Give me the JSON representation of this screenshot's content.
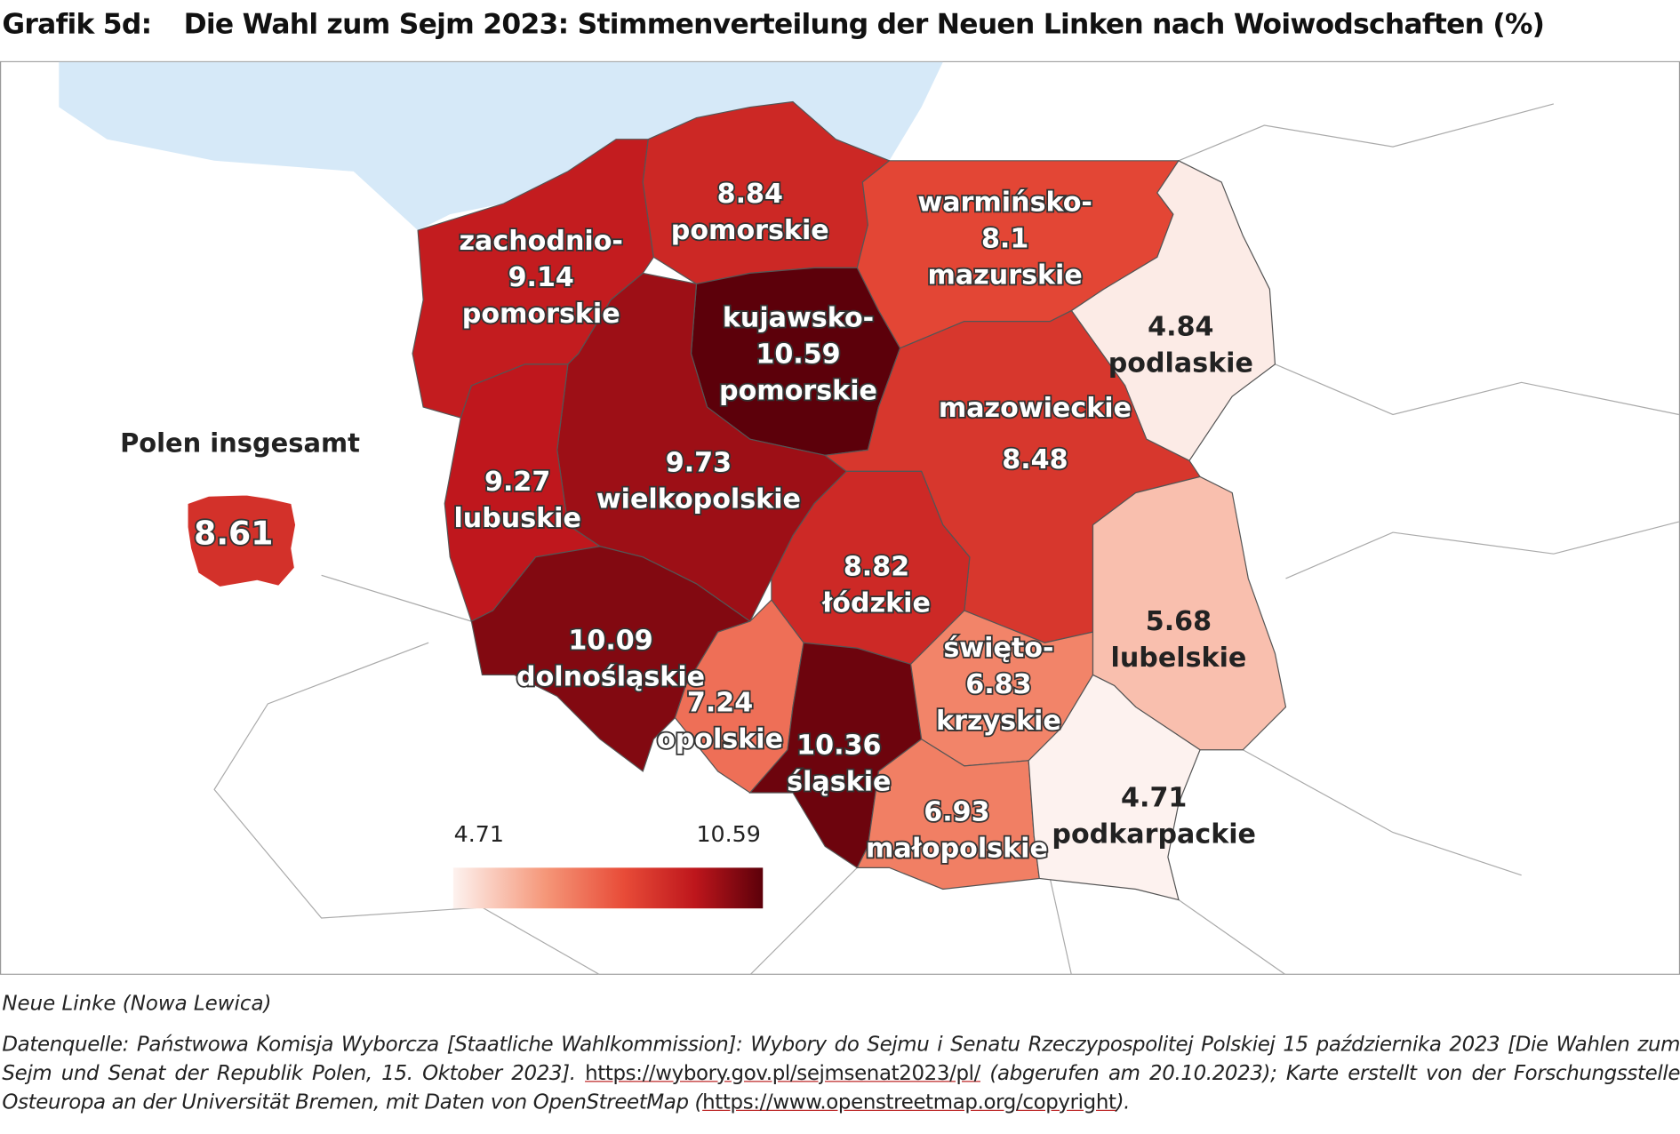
{
  "title_label": "Grafik 5d:",
  "title": "Die Wahl zum Sejm 2023: Stimmenverteilung der Neuen Linken nach Woiwodschaften (%)",
  "overall": {
    "label": "Polen insgesamt",
    "value": 8.61
  },
  "legend": {
    "min": 4.71,
    "max": 10.59
  },
  "regions": [
    {
      "name": [
        "zachodnio-",
        "pomorskie"
      ],
      "value": 9.14
    },
    {
      "name": [
        "pomorskie"
      ],
      "value": 8.84
    },
    {
      "name": [
        "warmińsko-",
        "mazurskie"
      ],
      "value": 8.1
    },
    {
      "name": [
        "podlaskie"
      ],
      "value": 4.84
    },
    {
      "name": [
        "kujawsko-",
        "pomorskie"
      ],
      "value": 10.59
    },
    {
      "name": [
        "wielkopolskie"
      ],
      "value": 9.73
    },
    {
      "name": [
        "lubuskie"
      ],
      "value": 9.27
    },
    {
      "name": [
        "mazowieckie"
      ],
      "value": 8.48
    },
    {
      "name": [
        "łódzkie"
      ],
      "value": 8.82
    },
    {
      "name": [
        "dolnośląskie"
      ],
      "value": 10.09
    },
    {
      "name": [
        "opolskie"
      ],
      "value": 7.24
    },
    {
      "name": [
        "śląskie"
      ],
      "value": 10.36
    },
    {
      "name": [
        "święto-",
        "krzyskie"
      ],
      "value": 6.83
    },
    {
      "name": [
        "małopolskie"
      ],
      "value": 6.93
    },
    {
      "name": [
        "lubelskie"
      ],
      "value": 5.68
    },
    {
      "name": [
        "podkarpackie"
      ],
      "value": 4.71
    }
  ],
  "note": "Neue Linke (Nowa Lewica)",
  "source": {
    "text1": "Datenquelle: Państwowa Komisja Wyborcza [Staatliche Wahlkommission]: Wybory do Sejmu i Senatu Rzeczypospolitej Polskiej 15 października 2023 [Die Wahlen zum Sejm und Senat der Republik Polen, 15. Oktober 2023]. ",
    "link1": "https://wybory.gov.pl/sejmsenat2023/pl/",
    "text2": " (abgerufen am 20.10.2023); Karte erstellt von der Forschungsstelle Osteuropa an der Universität Bremen, mit Daten von OpenStreetMap (",
    "link2": "https://www.openstreetmap.org/copyright",
    "text3": ")."
  }
}
